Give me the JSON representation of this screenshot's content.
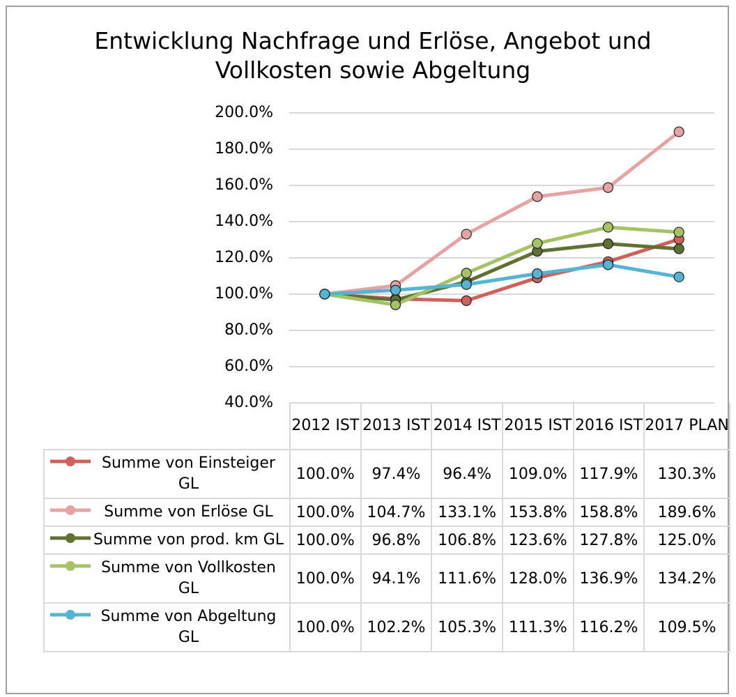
{
  "chart_data": {
    "type": "line",
    "title": "Entwicklung Nachfrage und Erlöse, Angebot und Vollkosten sowie Abgeltung",
    "categories": [
      "2012 IST",
      "2013 IST",
      "2014 IST",
      "2015 IST",
      "2016 IST",
      "2017 PLAN"
    ],
    "series": [
      {
        "name": "Summe von Einsteiger GL",
        "color": "#d0605a",
        "values": [
          100.0,
          97.4,
          96.4,
          109.0,
          117.9,
          130.3
        ],
        "value_labels": [
          "100.0%",
          "97.4%",
          "96.4%",
          "109.0%",
          "117.9%",
          "130.3%"
        ]
      },
      {
        "name": "Summe von Erlöse GL",
        "color": "#e6a3a3",
        "values": [
          100.0,
          104.7,
          133.1,
          153.8,
          158.8,
          189.6
        ],
        "value_labels": [
          "100.0%",
          "104.7%",
          "133.1%",
          "153.8%",
          "158.8%",
          "189.6%"
        ]
      },
      {
        "name": "Summe von prod. km GL",
        "color": "#5e7032",
        "values": [
          100.0,
          96.8,
          106.8,
          123.6,
          127.8,
          125.0
        ],
        "value_labels": [
          "100.0%",
          "96.8%",
          "106.8%",
          "123.6%",
          "127.8%",
          "125.0%"
        ]
      },
      {
        "name": "Summe von Vollkosten GL",
        "color": "#a5c365",
        "values": [
          100.0,
          94.1,
          111.6,
          128.0,
          136.9,
          134.2
        ],
        "value_labels": [
          "100.0%",
          "94.1%",
          "111.6%",
          "128.0%",
          "136.9%",
          "134.2%"
        ]
      },
      {
        "name": "Summe von Abgeltung GL",
        "color": "#56b4d3",
        "values": [
          100.0,
          102.2,
          105.3,
          111.3,
          116.2,
          109.5
        ],
        "value_labels": [
          "100.0%",
          "102.2%",
          "105.3%",
          "111.3%",
          "116.2%",
          "109.5%"
        ]
      }
    ],
    "ylim": [
      40,
      200
    ],
    "yticks": [
      {
        "value": 40,
        "label": "40.0%"
      },
      {
        "value": 60,
        "label": "60.0%"
      },
      {
        "value": 80,
        "label": "80.0%"
      },
      {
        "value": 100,
        "label": "100.0%"
      },
      {
        "value": 120,
        "label": "120.0%"
      },
      {
        "value": 140,
        "label": "140.0%"
      },
      {
        "value": 160,
        "label": "160.0%"
      },
      {
        "value": 180,
        "label": "180.0%"
      },
      {
        "value": 200,
        "label": "200.0%"
      }
    ],
    "grid": true,
    "legend": "table"
  }
}
